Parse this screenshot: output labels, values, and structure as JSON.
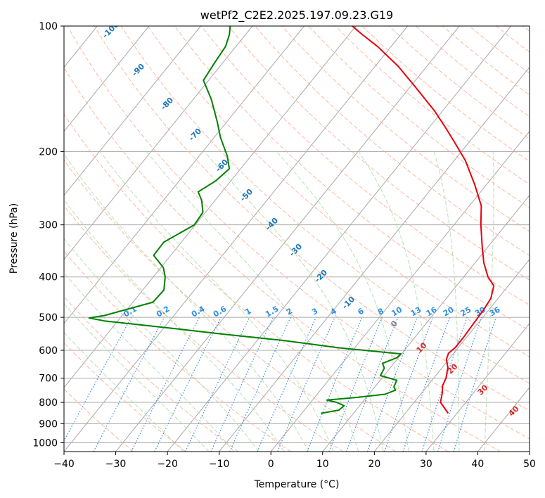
{
  "chart_data": {
    "type": "line",
    "subtype": "skew-t log-p diagram",
    "title": "wetPf2_C2E2.2025.197.09.23.G19",
    "xlabel": "Temperature (°C)",
    "ylabel": "Pressure (hPa)",
    "xlim": [
      -40,
      50
    ],
    "ylim": [
      1050,
      100
    ],
    "y_scale": "log",
    "grid": true,
    "x_ticks": [
      -40,
      -30,
      -20,
      -10,
      0,
      10,
      20,
      30,
      40,
      50
    ],
    "x_tick_labels": [
      "−40",
      "−30",
      "−20",
      "−10",
      "0",
      "10",
      "20",
      "30",
      "40",
      "50"
    ],
    "y_ticks": [
      100,
      200,
      300,
      400,
      500,
      600,
      700,
      800,
      900,
      1000
    ],
    "y_tick_labels": [
      "100",
      "200",
      "300",
      "400",
      "500",
      "600",
      "700",
      "800",
      "900",
      "1000"
    ],
    "series": [
      {
        "role": "temperature",
        "color": "#e8000b",
        "points": [
          [
            850,
            28.3
          ],
          [
            800,
            25.1
          ],
          [
            760,
            24.0
          ],
          [
            730,
            22.9
          ],
          [
            700,
            22.4
          ],
          [
            660,
            21.1
          ],
          [
            630,
            19.5
          ],
          [
            610,
            19.0
          ],
          [
            590,
            19.4
          ],
          [
            560,
            19.4
          ],
          [
            520,
            19.2
          ],
          [
            480,
            19.0
          ],
          [
            450,
            18.6
          ],
          [
            420,
            17.2
          ],
          [
            400,
            14.7
          ],
          [
            370,
            11.7
          ],
          [
            340,
            9.0
          ],
          [
            300,
            5.2
          ],
          [
            270,
            2.3
          ],
          [
            240,
            -2.3
          ],
          [
            210,
            -7.9
          ],
          [
            190,
            -12.8
          ],
          [
            175,
            -16.9
          ],
          [
            160,
            -21.5
          ],
          [
            140,
            -29.0
          ],
          [
            125,
            -35.5
          ],
          [
            112,
            -42.6
          ],
          [
            104,
            -48.0
          ],
          [
            100,
            -50.7
          ]
        ]
      },
      {
        "role": "dewpoint",
        "color": "#008000",
        "points": [
          [
            850,
            3.7
          ],
          [
            835,
            6.7
          ],
          [
            815,
            7.0
          ],
          [
            800,
            5.0
          ],
          [
            790,
            2.8
          ],
          [
            778,
            8.3
          ],
          [
            765,
            13.1
          ],
          [
            748,
            14.5
          ],
          [
            735,
            13.7
          ],
          [
            708,
            13.2
          ],
          [
            690,
            9.3
          ],
          [
            662,
            8.9
          ],
          [
            645,
            7.8
          ],
          [
            625,
            9.7
          ],
          [
            612,
            9.9
          ],
          [
            592,
            -2.9
          ],
          [
            568,
            -15.1
          ],
          [
            548,
            -28.0
          ],
          [
            530,
            -39.2
          ],
          [
            510,
            -52.6
          ],
          [
            502,
            -56.0
          ],
          [
            495,
            -53.4
          ],
          [
            460,
            -46.1
          ],
          [
            430,
            -45.9
          ],
          [
            400,
            -47.7
          ],
          [
            380,
            -49.5
          ],
          [
            355,
            -53.3
          ],
          [
            330,
            -53.4
          ],
          [
            300,
            -50.2
          ],
          [
            280,
            -50.5
          ],
          [
            262,
            -52.6
          ],
          [
            250,
            -54.6
          ],
          [
            235,
            -52.9
          ],
          [
            220,
            -52.2
          ],
          [
            205,
            -54.6
          ],
          [
            185,
            -58.8
          ],
          [
            170,
            -61.8
          ],
          [
            150,
            -66.5
          ],
          [
            135,
            -71.0
          ],
          [
            122,
            -71.6
          ],
          [
            112,
            -72.0
          ],
          [
            105,
            -73.1
          ],
          [
            100,
            -74.3
          ]
        ]
      }
    ],
    "dry_adiabat_labels": [
      "-100",
      "-90",
      "-80",
      "-70",
      "-60",
      "-50",
      "-40",
      "-30",
      "-20",
      "-10",
      "0",
      "10",
      "20",
      "30",
      "40"
    ],
    "mixing_ratio_labels": [
      "0.1",
      "0.2",
      "0.4",
      "0.6",
      "1",
      "1.5",
      "2",
      "3",
      "4",
      "6",
      "8",
      "10",
      "13",
      "16",
      "20",
      "25",
      "30",
      "36"
    ],
    "colors": {
      "temperature": "#e8000b",
      "dewpoint": "#008000",
      "isotherm": "#a9a9a9",
      "isobar": "#a9a9a9",
      "dry_adiabat": "#fcab8f",
      "moist_adiabat": "#a6d8a0",
      "mixing_ratio": "#3a8fe0",
      "label_cold": "#1f77b4",
      "label_zero": "#808080",
      "label_warm": "#d62728"
    }
  }
}
